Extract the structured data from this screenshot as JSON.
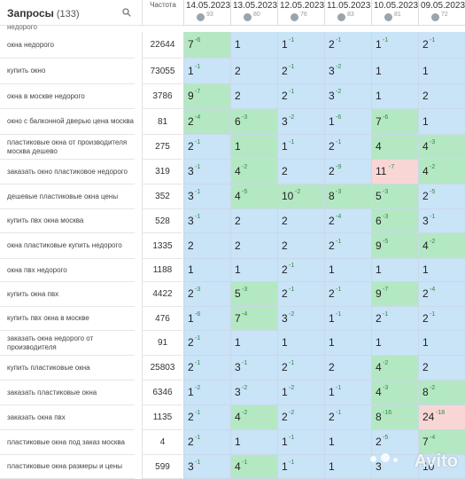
{
  "header": {
    "title": "Запросы",
    "count": "(133)",
    "frequency_label": "Частота"
  },
  "partial_top_row": "недорого",
  "dates": [
    {
      "label": "14.05.2023",
      "num": "93"
    },
    {
      "label": "13.05.2023",
      "num": "80"
    },
    {
      "label": "12.05.2023",
      "num": "76"
    },
    {
      "label": "11.05.2023",
      "num": "83"
    },
    {
      "label": "10.05.2023",
      "num": "81"
    },
    {
      "label": "09.05.2023",
      "num": "72"
    }
  ],
  "rows": [
    {
      "kw": "окна недорого",
      "freq": "22644",
      "cells": [
        {
          "v": "7",
          "d": "-6",
          "c": "g"
        },
        {
          "v": "1",
          "d": "",
          "c": "b"
        },
        {
          "v": "1",
          "d": "-1",
          "c": "b"
        },
        {
          "v": "2",
          "d": "-1",
          "c": "b"
        },
        {
          "v": "1",
          "d": "-1",
          "c": "b"
        },
        {
          "v": "2",
          "d": "-1",
          "c": "b"
        }
      ]
    },
    {
      "kw": "купить окно",
      "freq": "73055",
      "cells": [
        {
          "v": "1",
          "d": "-1",
          "c": "b"
        },
        {
          "v": "2",
          "d": "",
          "c": "b"
        },
        {
          "v": "2",
          "d": "-1",
          "c": "b"
        },
        {
          "v": "3",
          "d": "-2",
          "c": "b"
        },
        {
          "v": "1",
          "d": "",
          "c": "b"
        },
        {
          "v": "1",
          "d": "",
          "c": "b"
        }
      ]
    },
    {
      "kw": "окна в москве недорого",
      "freq": "3786",
      "cells": [
        {
          "v": "9",
          "d": "-7",
          "c": "g"
        },
        {
          "v": "2",
          "d": "",
          "c": "b"
        },
        {
          "v": "2",
          "d": "-1",
          "c": "b"
        },
        {
          "v": "3",
          "d": "-2",
          "c": "b"
        },
        {
          "v": "1",
          "d": "",
          "c": "b"
        },
        {
          "v": "2",
          "d": "",
          "c": "b"
        }
      ]
    },
    {
      "kw": "окно с балконной дверью цена москва",
      "freq": "81",
      "cells": [
        {
          "v": "2",
          "d": "-4",
          "c": "g"
        },
        {
          "v": "6",
          "d": "-3",
          "c": "g"
        },
        {
          "v": "3",
          "d": "-2",
          "c": "b"
        },
        {
          "v": "1",
          "d": "-6",
          "c": "b"
        },
        {
          "v": "7",
          "d": "-6",
          "c": "g"
        },
        {
          "v": "1",
          "d": "",
          "c": "b"
        }
      ]
    },
    {
      "kw": "пластиковые окна от производителя москва дешево",
      "freq": "275",
      "cells": [
        {
          "v": "2",
          "d": "-1",
          "c": "b"
        },
        {
          "v": "1",
          "d": "",
          "c": "g"
        },
        {
          "v": "1",
          "d": "-1",
          "c": "b"
        },
        {
          "v": "2",
          "d": "-1",
          "c": "b"
        },
        {
          "v": "4",
          "d": "",
          "c": "g"
        },
        {
          "v": "4",
          "d": "-3",
          "c": "g"
        }
      ]
    },
    {
      "kw": "заказать окно пластиковое недорого",
      "freq": "319",
      "cells": [
        {
          "v": "3",
          "d": "-1",
          "c": "b"
        },
        {
          "v": "4",
          "d": "-2",
          "c": "g"
        },
        {
          "v": "2",
          "d": "",
          "c": "b"
        },
        {
          "v": "2",
          "d": "-9",
          "c": "b"
        },
        {
          "v": "11",
          "d": "-7",
          "c": "r"
        },
        {
          "v": "4",
          "d": "-2",
          "c": "g"
        }
      ]
    },
    {
      "kw": "дешевые пластиковые окна цены",
      "freq": "352",
      "cells": [
        {
          "v": "3",
          "d": "-1",
          "c": "b"
        },
        {
          "v": "4",
          "d": "-5",
          "c": "g"
        },
        {
          "v": "10",
          "d": "-2",
          "c": "g"
        },
        {
          "v": "8",
          "d": "-3",
          "c": "g"
        },
        {
          "v": "5",
          "d": "-3",
          "c": "g"
        },
        {
          "v": "2",
          "d": "-5",
          "c": "b"
        }
      ]
    },
    {
      "kw": "купить пвх окна москва",
      "freq": "528",
      "cells": [
        {
          "v": "3",
          "d": "-1",
          "c": "b"
        },
        {
          "v": "2",
          "d": "",
          "c": "b"
        },
        {
          "v": "2",
          "d": "",
          "c": "b"
        },
        {
          "v": "2",
          "d": "-4",
          "c": "b"
        },
        {
          "v": "6",
          "d": "-3",
          "c": "g"
        },
        {
          "v": "3",
          "d": "-1",
          "c": "b"
        }
      ]
    },
    {
      "kw": "окна пластиковые купить недорого",
      "freq": "1335",
      "cells": [
        {
          "v": "2",
          "d": "",
          "c": "b"
        },
        {
          "v": "2",
          "d": "",
          "c": "b"
        },
        {
          "v": "2",
          "d": "",
          "c": "b"
        },
        {
          "v": "2",
          "d": "-1",
          "c": "b"
        },
        {
          "v": "9",
          "d": "-5",
          "c": "g"
        },
        {
          "v": "4",
          "d": "-2",
          "c": "g"
        }
      ]
    },
    {
      "kw": "окна пвх недорого",
      "freq": "1188",
      "cells": [
        {
          "v": "1",
          "d": "",
          "c": "b"
        },
        {
          "v": "1",
          "d": "",
          "c": "b"
        },
        {
          "v": "2",
          "d": "-1",
          "c": "b"
        },
        {
          "v": "1",
          "d": "",
          "c": "b"
        },
        {
          "v": "1",
          "d": "",
          "c": "b"
        },
        {
          "v": "1",
          "d": "",
          "c": "b"
        }
      ]
    },
    {
      "kw": "купить окна пвх",
      "freq": "4422",
      "cells": [
        {
          "v": "2",
          "d": "-3",
          "c": "b"
        },
        {
          "v": "5",
          "d": "-3",
          "c": "g"
        },
        {
          "v": "2",
          "d": "-1",
          "c": "b"
        },
        {
          "v": "2",
          "d": "-1",
          "c": "b"
        },
        {
          "v": "9",
          "d": "-7",
          "c": "g"
        },
        {
          "v": "2",
          "d": "-4",
          "c": "b"
        }
      ]
    },
    {
      "kw": "купить пвх окна в москве",
      "freq": "476",
      "cells": [
        {
          "v": "1",
          "d": "-6",
          "c": "b"
        },
        {
          "v": "7",
          "d": "-4",
          "c": "g"
        },
        {
          "v": "3",
          "d": "-2",
          "c": "b"
        },
        {
          "v": "1",
          "d": "-1",
          "c": "b"
        },
        {
          "v": "2",
          "d": "-1",
          "c": "b"
        },
        {
          "v": "2",
          "d": "-1",
          "c": "b"
        }
      ]
    },
    {
      "kw": "заказать окна недорого от производителя",
      "freq": "91",
      "cells": [
        {
          "v": "2",
          "d": "-1",
          "c": "b"
        },
        {
          "v": "1",
          "d": "",
          "c": "b"
        },
        {
          "v": "1",
          "d": "",
          "c": "b"
        },
        {
          "v": "1",
          "d": "",
          "c": "b"
        },
        {
          "v": "1",
          "d": "",
          "c": "b"
        },
        {
          "v": "1",
          "d": "",
          "c": "b"
        }
      ]
    },
    {
      "kw": "купить пластиковые окна",
      "freq": "25803",
      "cells": [
        {
          "v": "2",
          "d": "-1",
          "c": "b"
        },
        {
          "v": "3",
          "d": "-1",
          "c": "b"
        },
        {
          "v": "2",
          "d": "-1",
          "c": "b"
        },
        {
          "v": "2",
          "d": "",
          "c": "b"
        },
        {
          "v": "4",
          "d": "-2",
          "c": "g"
        },
        {
          "v": "2",
          "d": "",
          "c": "b"
        }
      ]
    },
    {
      "kw": "заказать пластиковые окна",
      "freq": "6346",
      "cells": [
        {
          "v": "1",
          "d": "-2",
          "c": "b"
        },
        {
          "v": "3",
          "d": "-2",
          "c": "b"
        },
        {
          "v": "1",
          "d": "-2",
          "c": "b"
        },
        {
          "v": "1",
          "d": "-1",
          "c": "b"
        },
        {
          "v": "4",
          "d": "-3",
          "c": "g"
        },
        {
          "v": "8",
          "d": "-2",
          "c": "g"
        }
      ]
    },
    {
      "kw": "заказать окна пвх",
      "freq": "1135",
      "cells": [
        {
          "v": "2",
          "d": "-1",
          "c": "b"
        },
        {
          "v": "4",
          "d": "-2",
          "c": "g"
        },
        {
          "v": "2",
          "d": "-2",
          "c": "b"
        },
        {
          "v": "2",
          "d": "-1",
          "c": "b"
        },
        {
          "v": "8",
          "d": "-16",
          "c": "g"
        },
        {
          "v": "24",
          "d": "-18",
          "c": "r"
        }
      ]
    },
    {
      "kw": "пластиковые окна под заказ москва",
      "freq": "4",
      "cells": [
        {
          "v": "2",
          "d": "-1",
          "c": "b"
        },
        {
          "v": "1",
          "d": "",
          "c": "b"
        },
        {
          "v": "1",
          "d": "-1",
          "c": "b"
        },
        {
          "v": "1",
          "d": "",
          "c": "b"
        },
        {
          "v": "2",
          "d": "-5",
          "c": "b"
        },
        {
          "v": "7",
          "d": "-4",
          "c": "g"
        }
      ]
    },
    {
      "kw": "пластиковые окна размеры и цены",
      "freq": "599",
      "cells": [
        {
          "v": "3",
          "d": "-1",
          "c": "b"
        },
        {
          "v": "4",
          "d": "-1",
          "c": "g"
        },
        {
          "v": "1",
          "d": "-1",
          "c": "b"
        },
        {
          "v": "1",
          "d": "",
          "c": "b"
        },
        {
          "v": "3",
          "d": "",
          "c": "b"
        },
        {
          "v": "10",
          "d": "",
          "c": "b"
        }
      ]
    }
  ],
  "watermark": "Avito",
  "colors": {
    "blue": "#c9e3f7",
    "green": "#b4e8c2",
    "red": "#f9d6d6"
  }
}
